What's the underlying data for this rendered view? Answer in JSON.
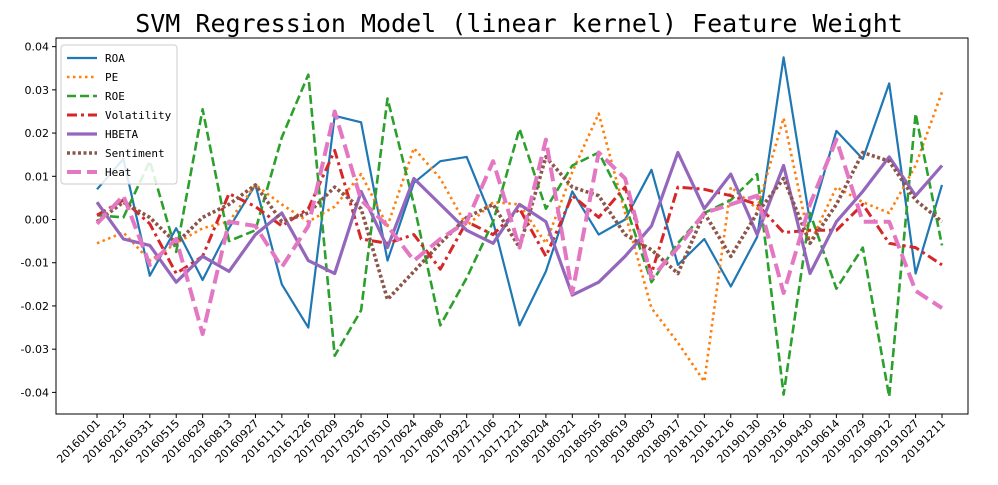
{
  "chart_data": {
    "type": "line",
    "title": "SVM Regression Model (linear kernel) Feature Weight",
    "xlabel": "",
    "ylabel": "",
    "ylim": [
      -0.045,
      0.042
    ],
    "yticks": [
      0.04,
      0.03,
      0.02,
      0.01,
      0.0,
      -0.01,
      -0.02,
      -0.03,
      -0.04
    ],
    "ytick_labels": [
      "0.04",
      "0.03",
      "0.02",
      "0.01",
      "0.00",
      "-0.01",
      "-0.02",
      "-0.03",
      "-0.04"
    ],
    "grid": false,
    "legend_position": "top-left",
    "categories": [
      "20160101",
      "20160215",
      "20160331",
      "20160515",
      "20160629",
      "20160813",
      "20160927",
      "20161111",
      "20161226",
      "20170209",
      "20170326",
      "20170510",
      "20170624",
      "20170808",
      "20170922",
      "20171106",
      "20171221",
      "20180204",
      "20180321",
      "20180505",
      "20180619",
      "20180803",
      "20180917",
      "20181101",
      "20181216",
      "20190130",
      "20190316",
      "20190430",
      "20190614",
      "20190729",
      "20190912",
      "20191027",
      "20191211"
    ],
    "series": [
      {
        "name": "ROA",
        "color": "#1f77b4",
        "dash": "solid",
        "width": 2.2,
        "values": [
          0.007,
          0.014,
          -0.013,
          -0.002,
          -0.014,
          -0.002,
          0.008,
          -0.015,
          -0.025,
          0.024,
          0.0225,
          -0.0095,
          0.0085,
          0.0135,
          0.0145,
          -0.0005,
          -0.0245,
          -0.012,
          0.0065,
          -0.0035,
          0.0,
          0.0115,
          -0.0105,
          -0.0045,
          -0.0155,
          -0.004,
          0.0375,
          -0.0005,
          0.0205,
          0.014,
          0.0315,
          -0.0125,
          0.008
        ]
      },
      {
        "name": "PE",
        "color": "#ff7f0e",
        "dash": "dot",
        "width": 2.6,
        "values": [
          -0.0055,
          -0.003,
          -0.0095,
          -0.0055,
          -0.002,
          -0.0005,
          0.008,
          0.0035,
          -0.0005,
          0.003,
          0.0105,
          -0.0015,
          0.0165,
          0.0095,
          -0.0015,
          0.004,
          0.0035,
          -0.0055,
          0.011,
          0.0245,
          0.0015,
          -0.0205,
          -0.0285,
          -0.0375,
          0.0075,
          0.0025,
          0.0235,
          -0.0055,
          0.0075,
          0.004,
          0.0015,
          0.0125,
          0.0295
        ]
      },
      {
        "name": "ROE",
        "color": "#2ca02c",
        "dash": "dashed",
        "width": 2.6,
        "values": [
          0.001,
          0.0005,
          0.0135,
          -0.0075,
          0.0255,
          -0.005,
          -0.0025,
          0.019,
          0.0335,
          -0.0315,
          -0.021,
          0.028,
          0.0035,
          -0.0245,
          -0.0135,
          -0.0005,
          0.021,
          0.0025,
          0.0125,
          0.0155,
          0.0035,
          -0.0145,
          -0.0055,
          0.0015,
          0.0045,
          0.0105,
          -0.0405,
          0.0015,
          -0.016,
          -0.0065,
          -0.041,
          0.0245,
          -0.006
        ]
      },
      {
        "name": "Volatility",
        "color": "#d62728",
        "dash": "dashdot",
        "width": 3,
        "values": [
          0.001,
          0.0045,
          -0.001,
          -0.0125,
          -0.0085,
          0.006,
          0.003,
          -0.0015,
          0.0025,
          0.016,
          -0.0045,
          -0.0055,
          -0.0035,
          -0.0115,
          -0.0005,
          -0.0035,
          0.0025,
          -0.0085,
          0.0055,
          0.0005,
          0.0075,
          -0.0125,
          0.0075,
          0.007,
          0.0055,
          0.0035,
          -0.003,
          -0.0025,
          -0.0025,
          0.0035,
          -0.0055,
          -0.0065,
          -0.0105
        ]
      },
      {
        "name": "HBETA",
        "color": "#9467bd",
        "dash": "solid",
        "width": 3.2,
        "values": [
          0.004,
          -0.0045,
          -0.006,
          -0.0145,
          -0.0085,
          -0.012,
          -0.0035,
          0.0015,
          -0.0095,
          -0.0125,
          0.0065,
          -0.0065,
          0.0095,
          0.0035,
          -0.0025,
          -0.0055,
          0.0035,
          -0.0005,
          -0.0175,
          -0.0145,
          -0.0085,
          -0.0015,
          0.0155,
          0.0025,
          0.0105,
          -0.0035,
          0.0125,
          -0.0125,
          -0.0005,
          0.0065,
          0.0145,
          0.0055,
          0.0125
        ]
      },
      {
        "name": "Sentiment",
        "color": "#8c564b",
        "dash": "densedot",
        "width": 3.6,
        "values": [
          -0.0005,
          0.004,
          0.0005,
          -0.0055,
          0.0005,
          0.0035,
          0.008,
          -0.0005,
          0.0015,
          0.0075,
          0.0025,
          -0.0185,
          -0.012,
          -0.0055,
          0.0005,
          0.0035,
          -0.0065,
          0.0145,
          0.0075,
          0.0055,
          -0.0035,
          -0.007,
          -0.0125,
          0.0015,
          -0.0085,
          0.0015,
          0.0095,
          -0.0055,
          0.0035,
          0.0155,
          0.0135,
          0.0045,
          -0.0005
        ]
      },
      {
        "name": "Heat",
        "color": "#e377c2",
        "dash": "longdash",
        "width": 4,
        "values": [
          -0.001,
          0.0055,
          -0.0105,
          -0.0045,
          -0.0265,
          -0.0005,
          -0.0015,
          -0.011,
          -0.0015,
          0.025,
          0.0045,
          -0.0015,
          -0.0095,
          -0.0045,
          -0.0005,
          0.0135,
          -0.0065,
          0.0185,
          -0.017,
          0.0155,
          0.0095,
          -0.0135,
          -0.0065,
          0.0015,
          0.0035,
          0.0055,
          -0.017,
          0.0035,
          0.0185,
          -0.0005,
          -0.0005,
          -0.0165,
          -0.0205
        ]
      }
    ]
  }
}
